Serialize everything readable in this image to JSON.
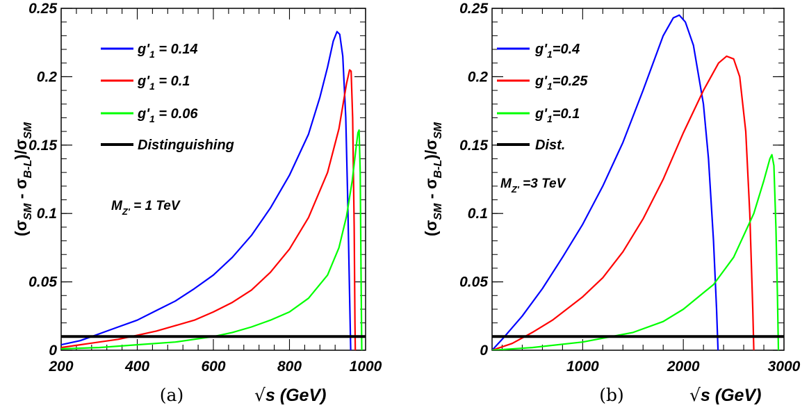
{
  "chart_data": [
    {
      "type": "line",
      "caption": "(a)",
      "xlabel": "√s (GeV)",
      "ylabel": "(σSM - σB-L)/σSM",
      "xlim": [
        200,
        1000
      ],
      "ylim": [
        0,
        0.25
      ],
      "x_ticks": [
        "200",
        "400",
        "600",
        "800",
        "1000"
      ],
      "y_ticks": [
        "0",
        "0.05",
        "0.1",
        "0.15",
        "0.2",
        "0.25"
      ],
      "annotation": {
        "label": "M",
        "subscript": "Z'",
        "value": " = 1 TeV"
      },
      "legend": {
        "position": "top-left"
      },
      "series": [
        {
          "name": "g'1 = 0.14",
          "color": "#0000ff",
          "points": [
            [
              200,
              0.004
            ],
            [
              250,
              0.007
            ],
            [
              300,
              0.012
            ],
            [
              350,
              0.017
            ],
            [
              400,
              0.022
            ],
            [
              450,
              0.029
            ],
            [
              500,
              0.036
            ],
            [
              550,
              0.045
            ],
            [
              600,
              0.055
            ],
            [
              650,
              0.068
            ],
            [
              700,
              0.084
            ],
            [
              750,
              0.104
            ],
            [
              800,
              0.128
            ],
            [
              850,
              0.158
            ],
            [
              880,
              0.185
            ],
            [
              900,
              0.207
            ],
            [
              915,
              0.226
            ],
            [
              925,
              0.233
            ],
            [
              932,
              0.231
            ],
            [
              940,
              0.215
            ],
            [
              948,
              0.17
            ],
            [
              953,
              0.11
            ],
            [
              958,
              0.04
            ],
            [
              961,
              0.0
            ]
          ]
        },
        {
          "name": "g'1 = 0.1",
          "color": "#ff0000",
          "points": [
            [
              200,
              0.002
            ],
            [
              250,
              0.004
            ],
            [
              300,
              0.006
            ],
            [
              350,
              0.008
            ],
            [
              400,
              0.011
            ],
            [
              450,
              0.014
            ],
            [
              500,
              0.018
            ],
            [
              550,
              0.022
            ],
            [
              600,
              0.028
            ],
            [
              650,
              0.035
            ],
            [
              700,
              0.044
            ],
            [
              750,
              0.057
            ],
            [
              800,
              0.074
            ],
            [
              850,
              0.097
            ],
            [
              900,
              0.13
            ],
            [
              930,
              0.162
            ],
            [
              950,
              0.195
            ],
            [
              958,
              0.205
            ],
            [
              962,
              0.204
            ],
            [
              966,
              0.17
            ],
            [
              970,
              0.09
            ],
            [
              972,
              0.02
            ],
            [
              973,
              0.0
            ]
          ]
        },
        {
          "name": "g'1 = 0.06",
          "color": "#00ff00",
          "points": [
            [
              200,
              0.001
            ],
            [
              300,
              0.002
            ],
            [
              400,
              0.004
            ],
            [
              500,
              0.006
            ],
            [
              600,
              0.01
            ],
            [
              650,
              0.013
            ],
            [
              700,
              0.017
            ],
            [
              750,
              0.022
            ],
            [
              800,
              0.028
            ],
            [
              850,
              0.038
            ],
            [
              900,
              0.055
            ],
            [
              930,
              0.075
            ],
            [
              950,
              0.098
            ],
            [
              965,
              0.124
            ],
            [
              975,
              0.148
            ],
            [
              980,
              0.159
            ],
            [
              983,
              0.161
            ],
            [
              986,
              0.13
            ],
            [
              988,
              0.06
            ],
            [
              990,
              0.0
            ]
          ]
        },
        {
          "name": "Distinguishing",
          "color": "#000000",
          "points": [
            [
              200,
              0.01
            ],
            [
              1000,
              0.01
            ]
          ]
        }
      ]
    },
    {
      "type": "line",
      "caption": "(b)",
      "xlabel": "√s (GeV)",
      "ylabel": "(σSM - σB-L)/σSM",
      "xlim": [
        100,
        3000
      ],
      "ylim": [
        0,
        0.25
      ],
      "x_ticks": [
        "1000",
        "2000",
        "3000"
      ],
      "y_ticks": [
        "0",
        "0.05",
        "0.1",
        "0.15",
        "0.2",
        "0.25"
      ],
      "annotation": {
        "label": "M",
        "subscript": "Z'",
        "value": " =3 TeV"
      },
      "legend": {
        "position": "top-left"
      },
      "series": [
        {
          "name": "g'1=0.4",
          "color": "#0000ff",
          "points": [
            [
              100,
              0.0
            ],
            [
              200,
              0.008
            ],
            [
              400,
              0.025
            ],
            [
              600,
              0.045
            ],
            [
              800,
              0.068
            ],
            [
              1000,
              0.092
            ],
            [
              1200,
              0.12
            ],
            [
              1400,
              0.152
            ],
            [
              1600,
              0.19
            ],
            [
              1800,
              0.23
            ],
            [
              1900,
              0.243
            ],
            [
              1960,
              0.245
            ],
            [
              2020,
              0.24
            ],
            [
              2100,
              0.223
            ],
            [
              2200,
              0.18
            ],
            [
              2250,
              0.14
            ],
            [
              2300,
              0.08
            ],
            [
              2330,
              0.03
            ],
            [
              2345,
              0.0
            ]
          ]
        },
        {
          "name": "g'1=0.25",
          "color": "#ff0000",
          "points": [
            [
              100,
              0.0
            ],
            [
              300,
              0.005
            ],
            [
              500,
              0.013
            ],
            [
              700,
              0.022
            ],
            [
              1000,
              0.039
            ],
            [
              1200,
              0.053
            ],
            [
              1400,
              0.072
            ],
            [
              1600,
              0.096
            ],
            [
              1800,
              0.125
            ],
            [
              2000,
              0.159
            ],
            [
              2200,
              0.19
            ],
            [
              2350,
              0.21
            ],
            [
              2430,
              0.215
            ],
            [
              2500,
              0.213
            ],
            [
              2560,
              0.2
            ],
            [
              2620,
              0.16
            ],
            [
              2660,
              0.1
            ],
            [
              2690,
              0.03
            ],
            [
              2700,
              0.0
            ]
          ]
        },
        {
          "name": "g'1=0.1",
          "color": "#00ff00",
          "points": [
            [
              100,
              0.0
            ],
            [
              500,
              0.002
            ],
            [
              1000,
              0.006
            ],
            [
              1500,
              0.013
            ],
            [
              1800,
              0.021
            ],
            [
              2000,
              0.03
            ],
            [
              2300,
              0.048
            ],
            [
              2500,
              0.068
            ],
            [
              2700,
              0.1
            ],
            [
              2800,
              0.124
            ],
            [
              2860,
              0.14
            ],
            [
              2880,
              0.143
            ],
            [
              2900,
              0.135
            ],
            [
              2920,
              0.09
            ],
            [
              2935,
              0.04
            ],
            [
              2945,
              0.0
            ]
          ]
        },
        {
          "name": "Dist.",
          "color": "#000000",
          "points": [
            [
              100,
              0.01
            ],
            [
              3000,
              0.01
            ]
          ]
        }
      ]
    }
  ]
}
